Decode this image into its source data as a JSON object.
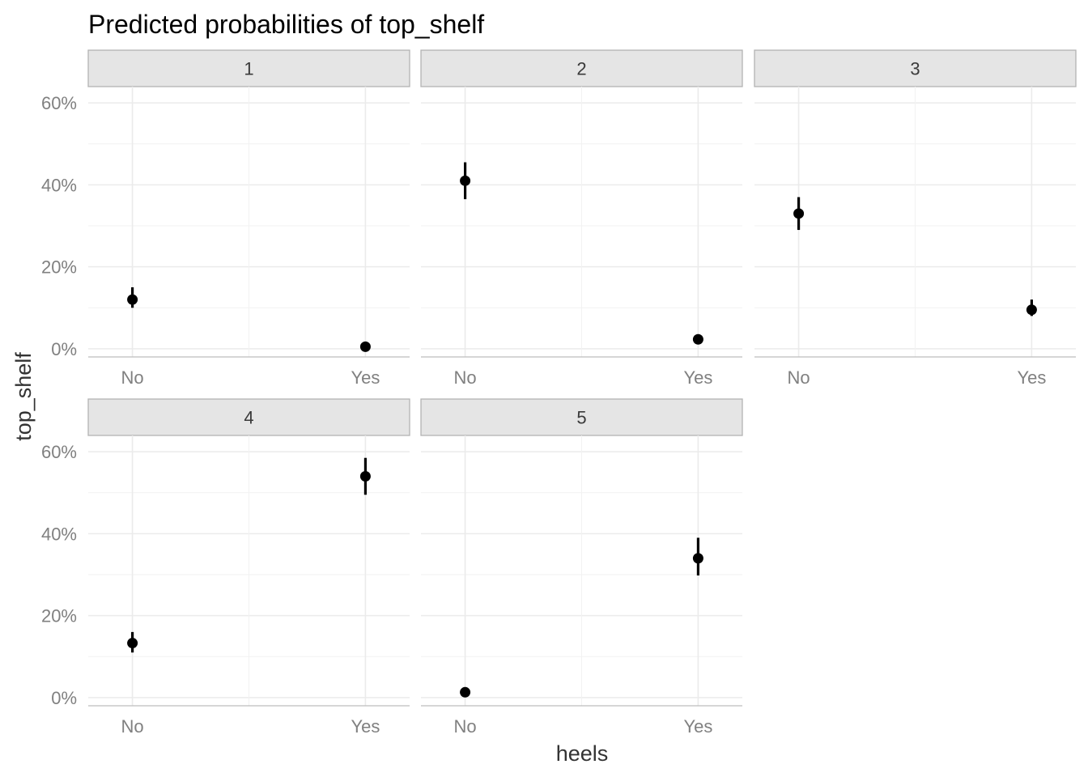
{
  "chart_data": {
    "type": "scatter",
    "title": "Predicted probabilities of top_shelf",
    "xlabel": "heels",
    "ylabel": "top_shelf",
    "categories": [
      "No",
      "Yes"
    ],
    "ylim": [
      0,
      0.6
    ],
    "y_ticks": [
      0,
      0.2,
      0.4,
      0.6
    ],
    "y_tick_labels": [
      "0%",
      "20%",
      "40%",
      "60%"
    ],
    "grid": true,
    "facets": [
      {
        "label": "1",
        "points": [
          {
            "x": "No",
            "y": 0.12,
            "lower": 0.1,
            "upper": 0.15
          },
          {
            "x": "Yes",
            "y": 0.005,
            "lower": 0.003,
            "upper": 0.009
          }
        ]
      },
      {
        "label": "2",
        "points": [
          {
            "x": "No",
            "y": 0.41,
            "lower": 0.365,
            "upper": 0.455
          },
          {
            "x": "Yes",
            "y": 0.023,
            "lower": 0.018,
            "upper": 0.029
          }
        ]
      },
      {
        "label": "3",
        "points": [
          {
            "x": "No",
            "y": 0.33,
            "lower": 0.29,
            "upper": 0.37
          },
          {
            "x": "Yes",
            "y": 0.095,
            "lower": 0.08,
            "upper": 0.12
          }
        ]
      },
      {
        "label": "4",
        "points": [
          {
            "x": "No",
            "y": 0.133,
            "lower": 0.11,
            "upper": 0.16
          },
          {
            "x": "Yes",
            "y": 0.54,
            "lower": 0.495,
            "upper": 0.585
          }
        ]
      },
      {
        "label": "5",
        "points": [
          {
            "x": "No",
            "y": 0.013,
            "lower": 0.01,
            "upper": 0.017
          },
          {
            "x": "Yes",
            "y": 0.34,
            "lower": 0.298,
            "upper": 0.39
          }
        ]
      }
    ]
  }
}
